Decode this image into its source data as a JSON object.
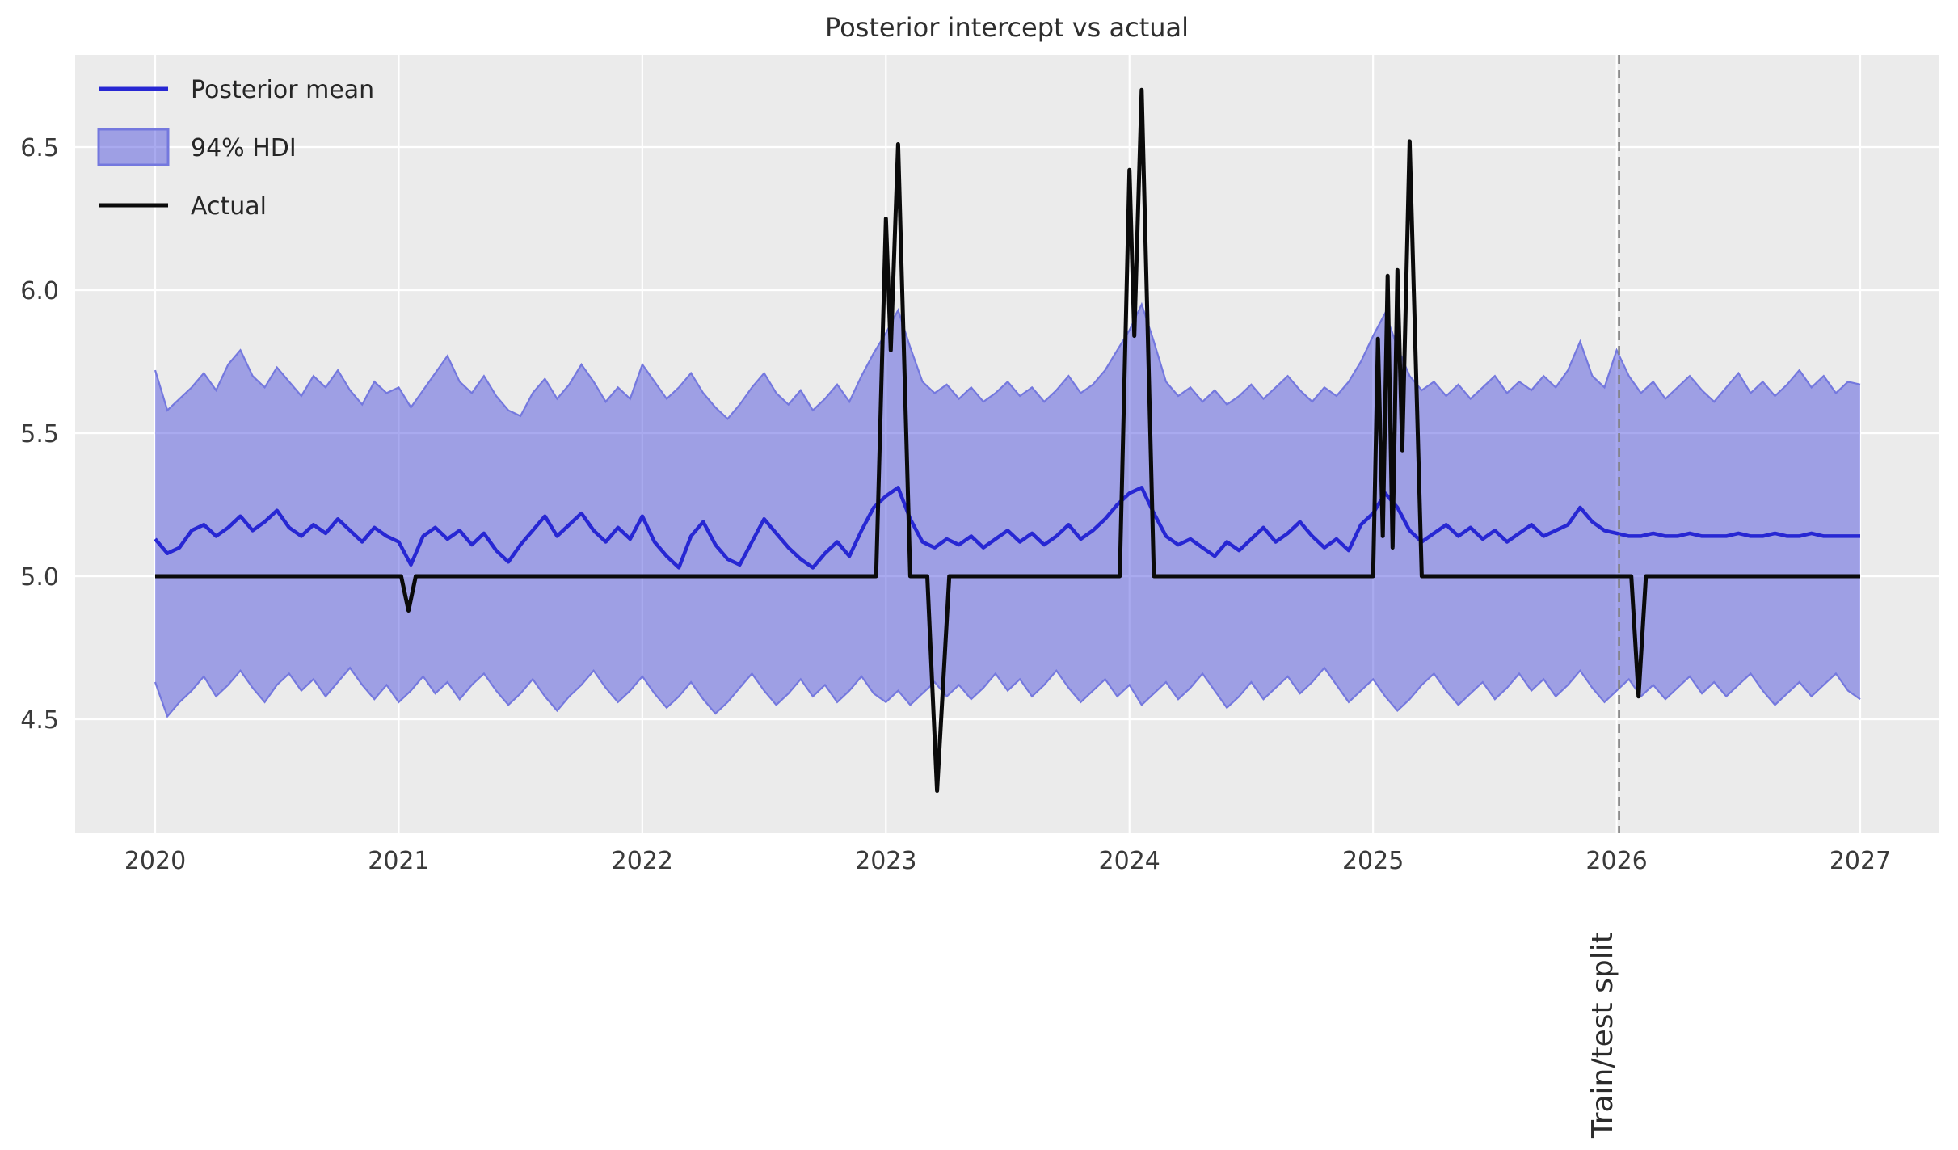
{
  "chart_data": {
    "type": "line",
    "title": "Posterior intercept vs actual",
    "xlabel": "",
    "ylabel": "",
    "xlim": [
      2019.67,
      2027.31
    ],
    "ylim": [
      4.1,
      6.82
    ],
    "x_ticks": [
      2020,
      2021,
      2022,
      2023,
      2024,
      2025,
      2026,
      2027
    ],
    "y_ticks": [
      4.5,
      5.0,
      5.5,
      6.0,
      6.5
    ],
    "grid": true,
    "background_color": "#ebebeb",
    "gridline_color": "#ffffff",
    "legend": {
      "position": "upper left",
      "entries": [
        {
          "label": "Posterior mean",
          "type": "line",
          "color": "#2727d3"
        },
        {
          "label": "94% HDI",
          "type": "band",
          "fill": "rgba(72,75,221,0.47)",
          "edge": "#7478de"
        },
        {
          "label": "Actual",
          "type": "line",
          "color": "#0a0a0a"
        }
      ]
    },
    "annotations": {
      "vline": {
        "x": 2026.0,
        "label": "Train/test split",
        "style": "dashed",
        "color": "#808080"
      }
    },
    "series": [
      {
        "name": "Posterior mean",
        "type": "line",
        "color": "#2727d3",
        "x_start": 2020,
        "x_step": 0.05,
        "values": [
          5.13,
          5.08,
          5.1,
          5.16,
          5.18,
          5.14,
          5.17,
          5.21,
          5.16,
          5.19,
          5.23,
          5.17,
          5.14,
          5.18,
          5.15,
          5.2,
          5.16,
          5.12,
          5.17,
          5.14,
          5.12,
          5.04,
          5.14,
          5.17,
          5.13,
          5.16,
          5.11,
          5.15,
          5.09,
          5.05,
          5.11,
          5.16,
          5.21,
          5.14,
          5.18,
          5.22,
          5.16,
          5.12,
          5.17,
          5.13,
          5.21,
          5.12,
          5.07,
          5.03,
          5.14,
          5.19,
          5.11,
          5.06,
          5.04,
          5.12,
          5.2,
          5.15,
          5.1,
          5.06,
          5.03,
          5.08,
          5.12,
          5.07,
          5.16,
          5.24,
          5.28,
          5.31,
          5.2,
          5.12,
          5.1,
          5.13,
          5.11,
          5.14,
          5.1,
          5.13,
          5.16,
          5.12,
          5.15,
          5.11,
          5.14,
          5.18,
          5.13,
          5.16,
          5.2,
          5.25,
          5.29,
          5.31,
          5.22,
          5.14,
          5.11,
          5.13,
          5.1,
          5.07,
          5.12,
          5.09,
          5.13,
          5.17,
          5.12,
          5.15,
          5.19,
          5.14,
          5.1,
          5.13,
          5.09,
          5.18,
          5.22,
          5.29,
          5.24,
          5.16,
          5.12,
          5.15,
          5.18,
          5.14,
          5.17,
          5.13,
          5.16,
          5.12,
          5.15,
          5.18,
          5.14,
          5.16,
          5.18,
          5.24,
          5.19,
          5.16,
          5.15,
          5.14,
          5.14,
          5.15,
          5.14,
          5.14,
          5.15,
          5.14,
          5.14,
          5.14,
          5.15,
          5.14,
          5.14,
          5.15,
          5.14,
          5.14,
          5.15,
          5.14,
          5.14,
          5.14,
          5.14
        ]
      },
      {
        "name": "94% HDI",
        "type": "band",
        "fill": "rgba(72,75,221,0.47)",
        "edge": "#7478de",
        "x_start": 2020,
        "x_step": 0.05,
        "upper": [
          5.72,
          5.58,
          5.62,
          5.66,
          5.71,
          5.65,
          5.74,
          5.79,
          5.7,
          5.66,
          5.73,
          5.68,
          5.63,
          5.7,
          5.66,
          5.72,
          5.65,
          5.6,
          5.68,
          5.64,
          5.66,
          5.59,
          5.65,
          5.71,
          5.77,
          5.68,
          5.64,
          5.7,
          5.63,
          5.58,
          5.56,
          5.64,
          5.69,
          5.62,
          5.67,
          5.74,
          5.68,
          5.61,
          5.66,
          5.62,
          5.74,
          5.68,
          5.62,
          5.66,
          5.71,
          5.64,
          5.59,
          5.55,
          5.6,
          5.66,
          5.71,
          5.64,
          5.6,
          5.65,
          5.58,
          5.62,
          5.67,
          5.61,
          5.7,
          5.78,
          5.85,
          5.93,
          5.8,
          5.68,
          5.64,
          5.67,
          5.62,
          5.66,
          5.61,
          5.64,
          5.68,
          5.63,
          5.66,
          5.61,
          5.65,
          5.7,
          5.64,
          5.67,
          5.72,
          5.79,
          5.86,
          5.95,
          5.82,
          5.68,
          5.63,
          5.66,
          5.61,
          5.65,
          5.6,
          5.63,
          5.67,
          5.62,
          5.66,
          5.7,
          5.65,
          5.61,
          5.66,
          5.63,
          5.68,
          5.75,
          5.84,
          5.92,
          5.8,
          5.7,
          5.65,
          5.68,
          5.63,
          5.67,
          5.62,
          5.66,
          5.7,
          5.64,
          5.68,
          5.65,
          5.7,
          5.66,
          5.72,
          5.82,
          5.7,
          5.66,
          5.79,
          5.7,
          5.64,
          5.68,
          5.62,
          5.66,
          5.7,
          5.65,
          5.61,
          5.66,
          5.71,
          5.64,
          5.68,
          5.63,
          5.67,
          5.72,
          5.66,
          5.7,
          5.64,
          5.68,
          5.67
        ],
        "lower": [
          4.63,
          4.51,
          4.56,
          4.6,
          4.65,
          4.58,
          4.62,
          4.67,
          4.61,
          4.56,
          4.62,
          4.66,
          4.6,
          4.64,
          4.58,
          4.63,
          4.68,
          4.62,
          4.57,
          4.62,
          4.56,
          4.6,
          4.65,
          4.59,
          4.63,
          4.57,
          4.62,
          4.66,
          4.6,
          4.55,
          4.59,
          4.64,
          4.58,
          4.53,
          4.58,
          4.62,
          4.67,
          4.61,
          4.56,
          4.6,
          4.65,
          4.59,
          4.54,
          4.58,
          4.63,
          4.57,
          4.52,
          4.56,
          4.61,
          4.66,
          4.6,
          4.55,
          4.59,
          4.64,
          4.58,
          4.62,
          4.56,
          4.6,
          4.65,
          4.59,
          4.56,
          4.6,
          4.55,
          4.59,
          4.63,
          4.58,
          4.62,
          4.57,
          4.61,
          4.66,
          4.6,
          4.64,
          4.58,
          4.62,
          4.67,
          4.61,
          4.56,
          4.6,
          4.64,
          4.58,
          4.62,
          4.55,
          4.59,
          4.63,
          4.57,
          4.61,
          4.66,
          4.6,
          4.54,
          4.58,
          4.63,
          4.57,
          4.61,
          4.65,
          4.59,
          4.63,
          4.68,
          4.62,
          4.56,
          4.6,
          4.64,
          4.58,
          4.53,
          4.57,
          4.62,
          4.66,
          4.6,
          4.55,
          4.59,
          4.63,
          4.57,
          4.61,
          4.66,
          4.6,
          4.64,
          4.58,
          4.62,
          4.67,
          4.61,
          4.56,
          4.6,
          4.64,
          4.58,
          4.62,
          4.57,
          4.61,
          4.65,
          4.59,
          4.63,
          4.58,
          4.62,
          4.66,
          4.6,
          4.55,
          4.59,
          4.63,
          4.58,
          4.62,
          4.66,
          4.6,
          4.57
        ]
      },
      {
        "name": "Actual",
        "type": "line",
        "color": "#0a0a0a",
        "points": [
          [
            2020.0,
            5.0
          ],
          [
            2021.01,
            5.0
          ],
          [
            2021.04,
            4.88
          ],
          [
            2021.07,
            5.0
          ],
          [
            2022.96,
            5.0
          ],
          [
            2023.0,
            6.25
          ],
          [
            2023.02,
            5.79
          ],
          [
            2023.05,
            6.51
          ],
          [
            2023.1,
            5.0
          ],
          [
            2023.17,
            5.0
          ],
          [
            2023.21,
            4.25
          ],
          [
            2023.26,
            5.0
          ],
          [
            2023.96,
            5.0
          ],
          [
            2024.0,
            6.42
          ],
          [
            2024.02,
            5.84
          ],
          [
            2024.05,
            6.7
          ],
          [
            2024.1,
            5.0
          ],
          [
            2025.0,
            5.0
          ],
          [
            2025.02,
            5.83
          ],
          [
            2025.04,
            5.14
          ],
          [
            2025.06,
            6.05
          ],
          [
            2025.08,
            5.1
          ],
          [
            2025.1,
            6.07
          ],
          [
            2025.12,
            5.44
          ],
          [
            2025.15,
            6.52
          ],
          [
            2025.2,
            5.0
          ],
          [
            2026.06,
            5.0
          ],
          [
            2026.09,
            4.58
          ],
          [
            2026.12,
            5.0
          ],
          [
            2027.0,
            5.0
          ]
        ]
      }
    ]
  }
}
